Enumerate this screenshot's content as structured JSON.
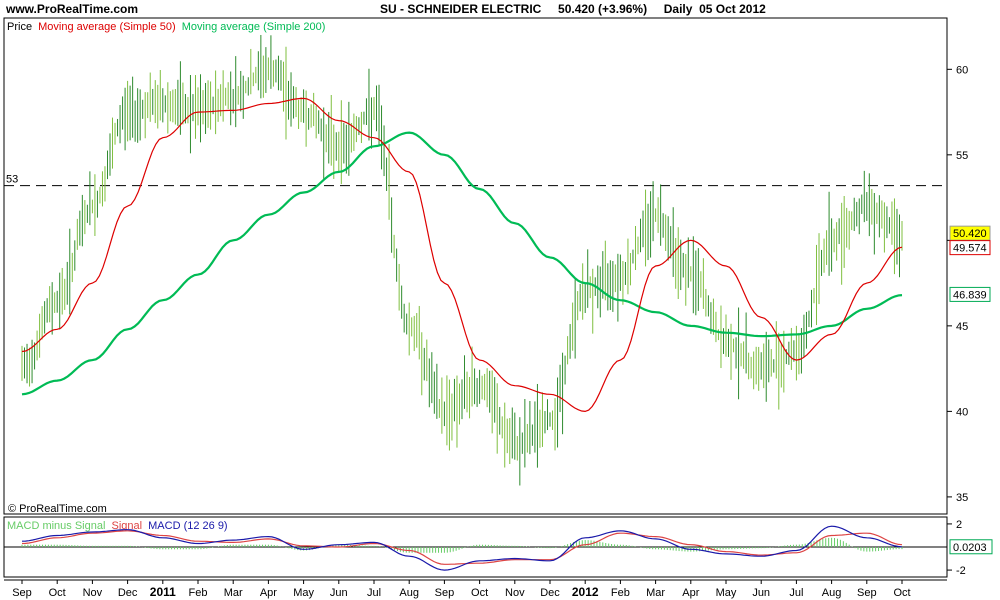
{
  "header": {
    "site": "www.ProRealTime.com",
    "title": "SU - SCHNEIDER ELECTRIC     50.420 (+3.96%)     Daily  05 Oct 2012"
  },
  "price_panel": {
    "legend": {
      "price": "Price",
      "ma50": "Moving average (Simple 50)",
      "ma200": "Moving average (Simple 200)"
    },
    "copyright": "© ProRealTime.com",
    "ref_line_label": "53",
    "badges": {
      "last": "50.420",
      "ma50": "49.574",
      "ma200": "46.839"
    }
  },
  "macd_panel": {
    "legend": {
      "hist": "MACD minus Signal",
      "signal": "Signal",
      "macd": "MACD (12 26 9)"
    },
    "badge": "0.0203",
    "y_ticks": [
      "2",
      "-2"
    ]
  },
  "x_axis": {
    "labels": [
      "Sep",
      "Oct",
      "Nov",
      "Dec",
      "2011",
      "Feb",
      "Mar",
      "Apr",
      "May",
      "Jun",
      "Jul",
      "Aug",
      "Sep",
      "Oct",
      "Nov",
      "Dec",
      "2012",
      "Feb",
      "Mar",
      "Apr",
      "May",
      "Jun",
      "Jul",
      "Aug",
      "Sep",
      "Oct"
    ],
    "bold": [
      "2011",
      "2012"
    ]
  },
  "colors": {
    "price": "#2e8b2e",
    "ma50": "#dd0000",
    "ma200": "#00bb55",
    "macd": "#1a1aaa",
    "signal": "#dd4444",
    "hist": "#66cc66",
    "last_badge_bg": "#ffff00"
  },
  "chart_data": [
    {
      "type": "line",
      "title": "SU - SCHNEIDER ELECTRIC",
      "x_range": [
        "Sep 2010",
        "Oct 2012"
      ],
      "ylim": [
        34,
        63
      ],
      "y_ticks": [
        35,
        40,
        45,
        50,
        55,
        60
      ],
      "reference_line": 53.2,
      "grid": false,
      "legend_position": "top-left",
      "x": [
        "Sep",
        "Oct",
        "Nov",
        "Dec",
        "2011",
        "Feb",
        "Mar",
        "Apr",
        "May",
        "Jun",
        "Jul",
        "Aug",
        "Sep",
        "Oct",
        "Nov",
        "Dec",
        "2012",
        "Feb",
        "Mar",
        "Apr",
        "May",
        "Jun",
        "Jul",
        "Aug",
        "Sep",
        "Oct"
      ],
      "series": [
        {
          "name": "Price",
          "values": [
            42.5,
            46.5,
            52.0,
            57.5,
            58.0,
            57.5,
            58.5,
            60.0,
            57.5,
            55.5,
            57.5,
            45.0,
            40.0,
            41.5,
            38.0,
            39.5,
            47.0,
            48.0,
            51.5,
            48.0,
            44.0,
            42.5,
            43.5,
            50.0,
            52.0,
            50.4
          ]
        },
        {
          "name": "Moving average (Simple 50)",
          "values": [
            43.5,
            44.8,
            47.5,
            52.0,
            56.0,
            57.5,
            57.6,
            58.0,
            58.3,
            57.0,
            56.0,
            54.0,
            47.5,
            43.0,
            41.5,
            41.0,
            40.0,
            43.0,
            48.5,
            50.0,
            48.5,
            45.5,
            43.0,
            44.5,
            47.5,
            49.6
          ]
        },
        {
          "name": "Moving average (Simple 200)",
          "values": [
            41.0,
            41.8,
            43.0,
            44.8,
            46.5,
            48.0,
            50.0,
            51.5,
            52.8,
            54.0,
            55.5,
            56.3,
            55.0,
            53.0,
            51.0,
            49.0,
            47.5,
            46.5,
            45.8,
            45.0,
            44.6,
            44.4,
            44.5,
            45.0,
            46.0,
            46.8
          ]
        }
      ]
    },
    {
      "type": "line",
      "title": "MACD (12 26 9)",
      "ylim": [
        -2.6,
        2.6
      ],
      "y_ticks": [
        2,
        -2
      ],
      "x": [
        "Sep",
        "Oct",
        "Nov",
        "Dec",
        "2011",
        "Feb",
        "Mar",
        "Apr",
        "May",
        "Jun",
        "Jul",
        "Aug",
        "Sep",
        "Oct",
        "Nov",
        "Dec",
        "2012",
        "Feb",
        "Mar",
        "Apr",
        "May",
        "Jun",
        "Jul",
        "Aug",
        "Sep",
        "Oct"
      ],
      "series": [
        {
          "name": "MACD",
          "values": [
            0.5,
            1.0,
            1.3,
            1.5,
            0.8,
            0.3,
            0.6,
            0.9,
            -0.2,
            0.2,
            0.4,
            -0.8,
            -2.0,
            -1.2,
            -1.0,
            -1.2,
            0.8,
            1.4,
            0.7,
            -0.2,
            -0.6,
            -0.8,
            -0.3,
            1.8,
            0.8,
            0.02
          ]
        },
        {
          "name": "Signal",
          "values": [
            0.3,
            0.8,
            1.2,
            1.4,
            1.0,
            0.5,
            0.4,
            0.7,
            0.1,
            0.0,
            0.3,
            -0.3,
            -1.5,
            -1.4,
            -1.1,
            -1.1,
            0.2,
            1.2,
            0.9,
            0.2,
            -0.4,
            -0.7,
            -0.5,
            1.0,
            1.2,
            0.2
          ]
        },
        {
          "name": "MACD minus Signal",
          "values": [
            0.2,
            0.2,
            0.1,
            0.1,
            -0.2,
            -0.2,
            0.2,
            0.2,
            -0.3,
            0.2,
            0.1,
            -0.5,
            -0.5,
            0.2,
            0.1,
            -0.1,
            0.6,
            0.2,
            -0.2,
            -0.4,
            -0.2,
            -0.1,
            0.2,
            0.8,
            -0.4,
            -0.18
          ]
        }
      ]
    }
  ]
}
